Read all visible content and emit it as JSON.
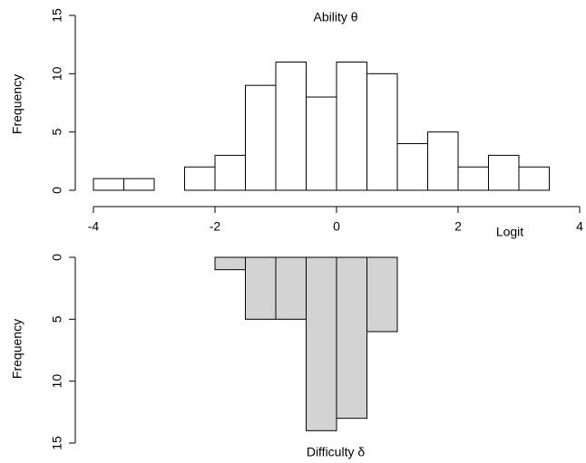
{
  "chart_data": [
    {
      "type": "histogram",
      "title": "Ability θ",
      "ylabel": "Frequency",
      "xlabel": "Logit",
      "bins": [
        -4,
        -3.5,
        -3,
        -2.5,
        -2,
        -1.5,
        -1,
        -0.5,
        0,
        0.5,
        1,
        1.5,
        2,
        2.5,
        3,
        3.5
      ],
      "values": [
        1,
        1,
        0,
        2,
        3,
        9,
        11,
        8,
        11,
        10,
        4,
        5,
        2,
        3,
        2
      ],
      "color": "#ffffff",
      "xlim": [
        -4,
        4
      ],
      "xticks": [
        -4,
        -2,
        0,
        2,
        4
      ],
      "ylim": [
        0,
        15
      ],
      "yticks": [
        0,
        5,
        10,
        15
      ]
    },
    {
      "type": "histogram",
      "title": "Difficulty δ",
      "ylabel": "Frequency",
      "bins": [
        -4,
        -3.5,
        -3,
        -2.5,
        -2,
        -1.5,
        -1,
        -0.5,
        0,
        0.5,
        1,
        1.5,
        2,
        2.5,
        3,
        3.5
      ],
      "values": [
        0,
        0,
        0,
        0,
        1,
        5,
        5,
        14,
        13,
        6,
        0,
        0,
        0,
        0,
        0
      ],
      "color": "#d3d3d3",
      "ylim": [
        0,
        15
      ],
      "yticks": [
        0,
        5,
        10,
        15
      ],
      "y_inverted": true
    }
  ]
}
